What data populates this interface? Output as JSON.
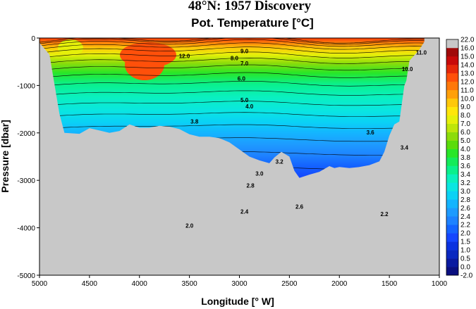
{
  "title": "48°N: 1957 Discovery",
  "subtitle": "Pot. Temperature [°C]",
  "chart_data": {
    "type": "heatmap",
    "title": "48°N: 1957 Discovery",
    "subtitle": "Pot. Temperature [°C]",
    "xlabel": "Longitude [° W]",
    "ylabel": "Pressure [dbar]",
    "xlim": [
      5000,
      1000
    ],
    "ylim": [
      0,
      -5000
    ],
    "x_ticks": [
      "5000",
      "4500",
      "4000",
      "3500",
      "3000",
      "2500",
      "2000",
      "1500",
      "1000"
    ],
    "y_ticks": [
      "0",
      "-1000",
      "-2000",
      "-3000",
      "-4000",
      "-5000"
    ],
    "colorbar_levels": [
      -2.0,
      0.0,
      0.5,
      1.0,
      1.5,
      2.0,
      2.2,
      2.4,
      2.6,
      2.8,
      3.0,
      3.2,
      3.4,
      3.6,
      3.8,
      4.0,
      5.0,
      6.0,
      7.0,
      8.0,
      9.0,
      10.0,
      11.0,
      12.0,
      13.0,
      14.0,
      15.0,
      16.0,
      22.0
    ],
    "colorbar_labels": [
      "-2.0",
      "0.0",
      "0.5",
      "1.0",
      "1.5",
      "2.0",
      "2.2",
      "2.4",
      "2.6",
      "2.8",
      "3.0",
      "3.2",
      "3.4",
      "3.6",
      "3.8",
      "4.0",
      "5.0",
      "6.0",
      "7.0",
      "8.0",
      "9.0",
      "10.0",
      "11.0",
      "12.0",
      "13.0",
      "14.0",
      "15.0",
      "16.0",
      "22.0"
    ],
    "colorbar_colors": [
      "#0a0f80",
      "#0a1aa0",
      "#0a28c0",
      "#0a32e0",
      "#1446ff",
      "#1464ff",
      "#1e82ff",
      "#1e9bff",
      "#14b4ff",
      "#0ad2f5",
      "#0ae6e1",
      "#0af0be",
      "#0af08c",
      "#14eb5a",
      "#28e628",
      "#5adc0a",
      "#8cdc0a",
      "#bee60a",
      "#e6f00a",
      "#ffe60a",
      "#ffc80a",
      "#ffa00a",
      "#ff780a",
      "#ff500a",
      "#e6280a",
      "#c80a0a",
      "#a00a0a",
      "#780000"
    ],
    "bottom_depth": [
      [
        5000,
        -100
      ],
      [
        4900,
        -350
      ],
      [
        4800,
        -1600
      ],
      [
        4750,
        -2000
      ],
      [
        4600,
        -2020
      ],
      [
        4500,
        -1900
      ],
      [
        4400,
        -1950
      ],
      [
        4300,
        -2000
      ],
      [
        4200,
        -1960
      ],
      [
        4100,
        -1820
      ],
      [
        4000,
        -1890
      ],
      [
        3900,
        -1890
      ],
      [
        3800,
        -1850
      ],
      [
        3700,
        -1870
      ],
      [
        3600,
        -1920
      ],
      [
        3500,
        -2030
      ],
      [
        3400,
        -2080
      ],
      [
        3300,
        -2080
      ],
      [
        3200,
        -2110
      ],
      [
        3100,
        -2200
      ],
      [
        3000,
        -2350
      ],
      [
        2900,
        -2500
      ],
      [
        2800,
        -2580
      ],
      [
        2700,
        -2640
      ],
      [
        2650,
        -2520
      ],
      [
        2580,
        -2400
      ],
      [
        2500,
        -2500
      ],
      [
        2450,
        -2800
      ],
      [
        2400,
        -2950
      ],
      [
        2300,
        -2880
      ],
      [
        2200,
        -2820
      ],
      [
        2150,
        -2760
      ],
      [
        2100,
        -2700
      ],
      [
        2050,
        -2740
      ],
      [
        2000,
        -2720
      ],
      [
        1900,
        -2740
      ],
      [
        1800,
        -2720
      ],
      [
        1700,
        -2680
      ],
      [
        1600,
        -2600
      ],
      [
        1550,
        -2400
      ],
      [
        1500,
        -2060
      ],
      [
        1450,
        -1820
      ],
      [
        1400,
        -1760
      ],
      [
        1350,
        -1000
      ],
      [
        1330,
        -900
      ],
      [
        1300,
        -480
      ],
      [
        1200,
        -250
      ],
      [
        1150,
        -80
      ]
    ],
    "contour_labels": [
      "11.0",
      "10.0",
      "12.0",
      "9.0",
      "8.0",
      "7.0",
      "6.0",
      "5.0",
      "4.0",
      "3.8",
      "3.6",
      "3.4",
      "3.2",
      "3.0",
      "2.8",
      "2.6",
      "2.4",
      "2.2",
      "2.0"
    ]
  }
}
